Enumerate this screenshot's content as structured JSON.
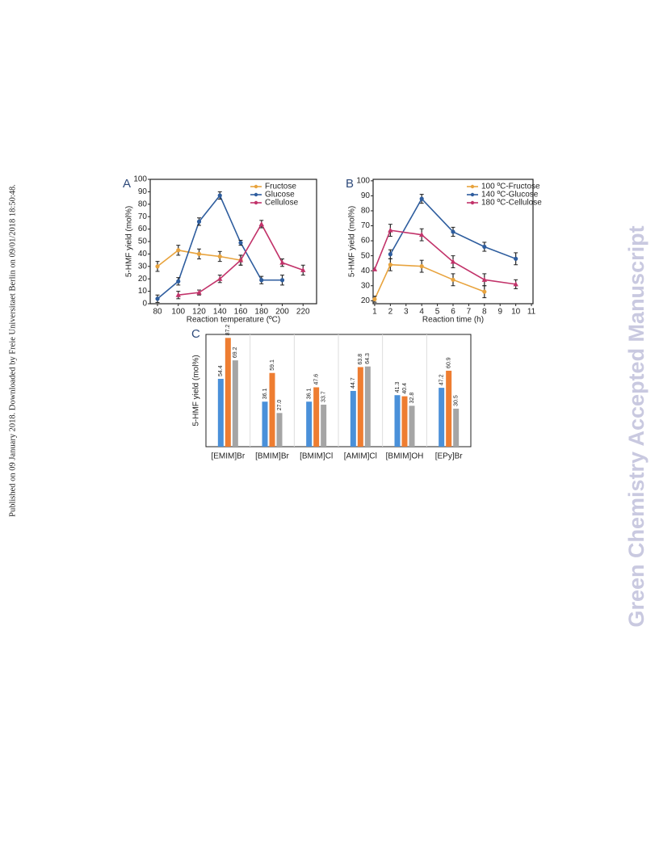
{
  "side_note": "Published on 09 January 2018. Downloaded by Freie Universitaet Berlin on 09/01/2018 18:50:48.",
  "watermark": "Green Chemistry Accepted Manuscript",
  "chart_data": [
    {
      "type": "line",
      "panel": "A",
      "x_label": "Reaction temperature (ºC)",
      "y_label": "5-HMF yield (mol%)",
      "x": [
        80,
        100,
        120,
        140,
        160,
        180,
        200,
        220
      ],
      "xlim": [
        73,
        233
      ],
      "xticks": [
        80,
        100,
        120,
        140,
        160,
        180,
        200,
        220
      ],
      "ylim": [
        0,
        100
      ],
      "yticks": [
        0,
        10,
        20,
        30,
        40,
        50,
        60,
        70,
        80,
        90,
        100
      ],
      "legend": "upper right",
      "series": [
        {
          "name": "Fructose",
          "color": "#e8a33d",
          "marker": "circle",
          "values": [
            30,
            43,
            40,
            38,
            35,
            null,
            null,
            null
          ],
          "errors": [
            4,
            4,
            4,
            4,
            4,
            null,
            null,
            null
          ]
        },
        {
          "name": "Glucose",
          "color": "#2e5d9e",
          "marker": "circle",
          "values": [
            4,
            18,
            66,
            87,
            49,
            19,
            19,
            null
          ],
          "errors": [
            3,
            3,
            3,
            3,
            2,
            3,
            4,
            null
          ]
        },
        {
          "name": "Cellulose",
          "color": "#c2336a",
          "marker": "triangle",
          "values": [
            null,
            7,
            9,
            20,
            35,
            64,
            33,
            27
          ],
          "errors": [
            null,
            3,
            2,
            3,
            4,
            3,
            3,
            4
          ]
        }
      ]
    },
    {
      "type": "line",
      "panel": "B",
      "x_label": "Reaction time (h)",
      "y_label": "5-HMF yield (mol%)",
      "x": [
        1,
        2,
        4,
        6,
        8,
        10
      ],
      "xlim": [
        0.9,
        11.1
      ],
      "xticks": [
        1,
        2,
        3,
        4,
        5,
        6,
        7,
        8,
        9,
        10,
        11
      ],
      "ylim": [
        18,
        101
      ],
      "yticks": [
        20,
        30,
        40,
        50,
        60,
        70,
        80,
        90,
        100
      ],
      "legend": "upper right",
      "series": [
        {
          "name": "100 ºC-Fructose",
          "color": "#e8a33d",
          "marker": "circle",
          "values": [
            21,
            44,
            43,
            34,
            26,
            null
          ],
          "errors": [
            2,
            4,
            4,
            4,
            4,
            null
          ]
        },
        {
          "name": "140 ºC-Glucose",
          "color": "#2e5d9e",
          "marker": "circle",
          "values": [
            null,
            51,
            88,
            66,
            56,
            48
          ],
          "errors": [
            null,
            3,
            3,
            3,
            3,
            4
          ]
        },
        {
          "name": "180 ºC-Cellulose",
          "color": "#c2336a",
          "marker": "triangle",
          "values": [
            41,
            67,
            64,
            46,
            34,
            31
          ],
          "errors": [
            null,
            4,
            4,
            4,
            4,
            3
          ]
        }
      ]
    },
    {
      "type": "bar",
      "panel": "C",
      "y_label": "5-HMF yield (mol%)",
      "categories": [
        "[EMIM]Br",
        "[BMIM]Br",
        "[BMIM]Cl",
        "[AMIM]Cl",
        "[BMIM]OH",
        "[EPy]Br"
      ],
      "ylim": [
        0,
        90
      ],
      "series": [
        {
          "color": "#4a90d9",
          "values": [
            54.4,
            36.1,
            36.1,
            44.7,
            41.3,
            47.2
          ],
          "value_labels": [
            "54.4",
            "36.1",
            "36.1",
            "44.7",
            "41.3",
            "47.2"
          ]
        },
        {
          "color": "#ee7d31",
          "values": [
            87.2,
            59.1,
            47.6,
            63.8,
            40.4,
            60.9
          ],
          "value_labels": [
            "87.2",
            "59.1",
            "47.6",
            "63.8",
            "40.4",
            "60.9"
          ]
        },
        {
          "color": "#a5a5a5",
          "values": [
            69.2,
            27,
            33.7,
            64.3,
            32.8,
            30.5
          ],
          "value_labels": [
            "69.2",
            "27.0",
            "33.7",
            "64.3",
            "32.8",
            "30.5"
          ]
        }
      ]
    }
  ]
}
